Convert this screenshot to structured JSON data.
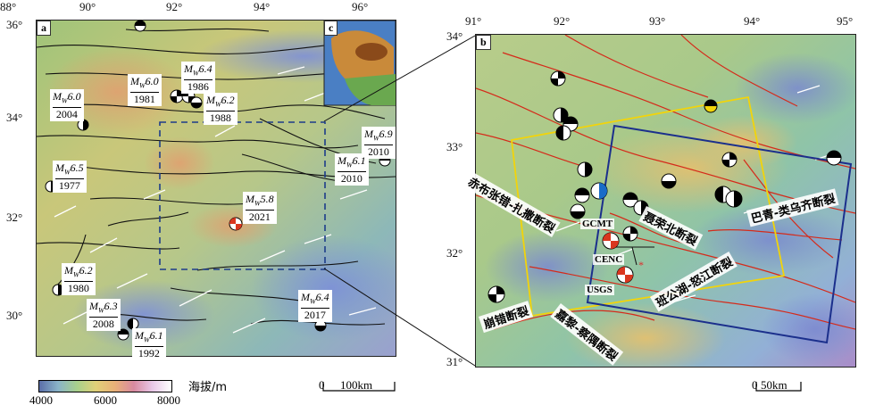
{
  "panel_a": {
    "letter": "a",
    "lon_ticks": [
      "88°",
      "90°",
      "92°",
      "94°",
      "96°"
    ],
    "lat_ticks": [
      "36°",
      "34°",
      "32°",
      "30°"
    ],
    "events": [
      {
        "mag": "6.4",
        "year": "1986"
      },
      {
        "mag": "6.0",
        "year": "1981"
      },
      {
        "mag": "6.2",
        "year": "1988"
      },
      {
        "mag": "6.0",
        "year": "2004"
      },
      {
        "mag": "6.5",
        "year": "1977"
      },
      {
        "mag": "5.8",
        "year": "2021"
      },
      {
        "mag": "6.9",
        "year": "2010"
      },
      {
        "mag": "6.1",
        "year": "2010"
      },
      {
        "mag": "6.2",
        "year": "1980"
      },
      {
        "mag": "6.3",
        "year": "2008"
      },
      {
        "mag": "6.1",
        "year": "1992"
      },
      {
        "mag": "6.4",
        "year": "2017"
      }
    ],
    "mw_prefix": "M",
    "mw_sub": "W",
    "colorbar": {
      "min": "4000",
      "mid": "6000",
      "max": "8000",
      "label": "海拔/m"
    },
    "scale": {
      "zero": "0",
      "end": "100km"
    }
  },
  "panel_c": {
    "letter": "c"
  },
  "panel_b": {
    "letter": "b",
    "lon_ticks": [
      "91°",
      "92°",
      "93°",
      "94°",
      "95°"
    ],
    "lat_ticks": [
      "34°",
      "33°",
      "32°",
      "31°"
    ],
    "faults": {
      "chibu": "赤布张错-扎撒断裂",
      "nierong": "聂荣北断裂",
      "baqing": "巴青-类乌齐断裂",
      "bangong": "班公湖-怒江断裂",
      "jiali": "嘉黎-察隅断裂",
      "beng": "崩错断裂"
    },
    "sources": {
      "gcmt": "GCMT",
      "cenc": "CENC",
      "usgs": "USGS"
    },
    "scale": {
      "zero": "0",
      "end": "50km"
    }
  },
  "colors": {
    "fault_a": "#111111",
    "fault_b": "#d52a1a",
    "box_yellow": "#f2d40a",
    "box_blue": "#1b2f8c",
    "main_event": "#d9361f"
  }
}
